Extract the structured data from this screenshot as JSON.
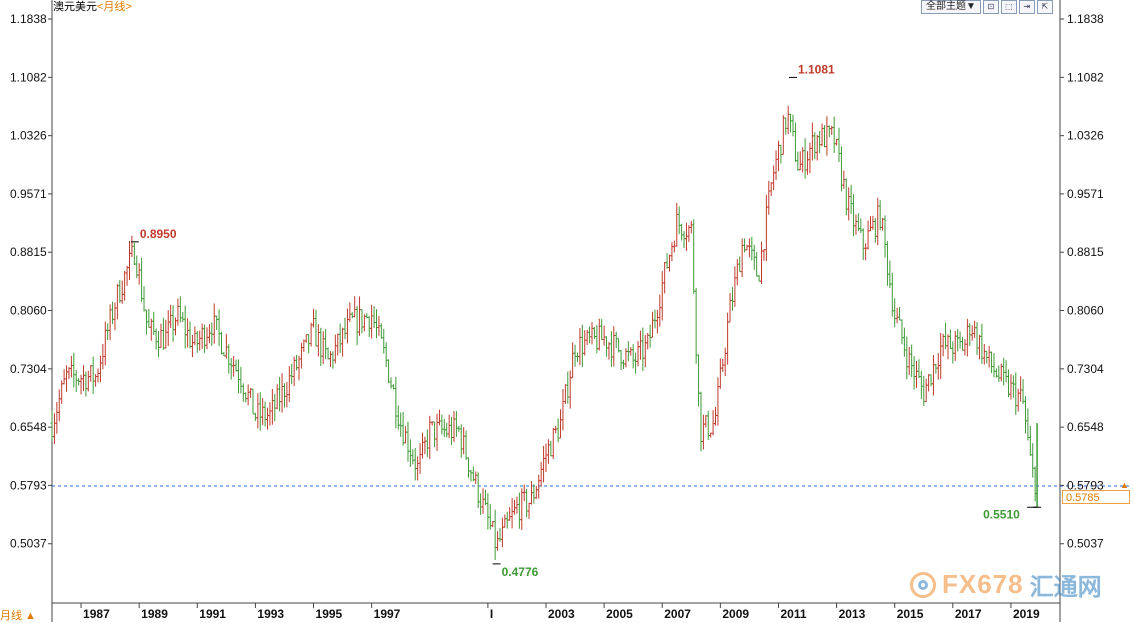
{
  "header": {
    "symbol": "澳元美元",
    "period": "<月线>"
  },
  "toolbar": {
    "theme_label": "全部主题▼",
    "buttons": [
      "⊡",
      "⬚",
      "⇥",
      "⇱"
    ]
  },
  "period_toggle": "月线 ▲",
  "watermark": {
    "text_a": "FX678",
    "text_b": "汇通网"
  },
  "colors": {
    "up": "#c0392b",
    "down": "#3e9a36",
    "current_line": "#2a6fdb",
    "axis": "#000000",
    "current_price": "#e07a00"
  },
  "current_price": {
    "label": "0.5785",
    "axis_mark": "0.5793",
    "value": 0.5785
  },
  "chart_data": {
    "type": "ohlc",
    "title": "澳元美元 <月线>",
    "ylim": [
      0.4282,
      1.1838
    ],
    "y_ticks": [
      "1.1838",
      "1.1082",
      "1.0326",
      "0.9571",
      "0.8815",
      "0.8060",
      "0.7304",
      "0.6548",
      "0.5793",
      "0.5037"
    ],
    "y_tick_values": [
      1.1838,
      1.1082,
      1.0326,
      0.9571,
      0.8815,
      0.806,
      0.7304,
      0.6548,
      0.5793,
      0.5037
    ],
    "x_ticks": [
      "1987",
      "1989",
      "1991",
      "1993",
      "1995",
      "1997",
      "I",
      "2003",
      "2005",
      "2007",
      "2009",
      "2011",
      "2013",
      "2015",
      "2017",
      "2019"
    ],
    "x_tick_years": [
      1987,
      1989,
      1991,
      1993,
      1995,
      1997,
      2001,
      2003,
      2005,
      2007,
      2009,
      2011,
      2013,
      2015,
      2017,
      2019
    ],
    "x_range": [
      1986.0,
      2020.0
    ],
    "annotations": [
      {
        "label": "0.8950",
        "year": 1988.85,
        "value": 0.895,
        "kind": "high"
      },
      {
        "label": "0.4776",
        "year": 2001.3,
        "value": 0.4776,
        "kind": "low"
      },
      {
        "label": "1.1081",
        "year": 2011.5,
        "value": 1.1081,
        "kind": "high"
      },
      {
        "label": "0.5510",
        "year": 2019.9,
        "value": 0.551,
        "kind": "low"
      }
    ],
    "path": [
      [
        1986.0,
        0.66
      ],
      [
        1986.5,
        0.72
      ],
      [
        1987.5,
        0.72
      ],
      [
        1988.2,
        0.82
      ],
      [
        1988.85,
        0.885
      ],
      [
        1989.3,
        0.78
      ],
      [
        1989.9,
        0.77
      ],
      [
        1990.3,
        0.8
      ],
      [
        1990.9,
        0.76
      ],
      [
        1991.5,
        0.79
      ],
      [
        1992.5,
        0.72
      ],
      [
        1993.0,
        0.67
      ],
      [
        1993.5,
        0.67
      ],
      [
        1994.5,
        0.74
      ],
      [
        1995.0,
        0.78
      ],
      [
        1995.5,
        0.74
      ],
      [
        1996.3,
        0.79
      ],
      [
        1997.0,
        0.8
      ],
      [
        1997.5,
        0.74
      ],
      [
        1998.0,
        0.66
      ],
      [
        1998.6,
        0.6
      ],
      [
        1999.0,
        0.65
      ],
      [
        2000.0,
        0.65
      ],
      [
        2000.5,
        0.59
      ],
      [
        2001.3,
        0.5
      ],
      [
        2002.0,
        0.55
      ],
      [
        2002.5,
        0.56
      ],
      [
        2003.0,
        0.62
      ],
      [
        2003.5,
        0.66
      ],
      [
        2004.0,
        0.76
      ],
      [
        2005.0,
        0.77
      ],
      [
        2006.0,
        0.74
      ],
      [
        2006.5,
        0.76
      ],
      [
        2007.0,
        0.84
      ],
      [
        2007.5,
        0.92
      ],
      [
        2008.0,
        0.91
      ],
      [
        2008.3,
        0.65
      ],
      [
        2008.8,
        0.66
      ],
      [
        2009.3,
        0.8
      ],
      [
        2009.8,
        0.9
      ],
      [
        2010.3,
        0.85
      ],
      [
        2010.8,
        0.98
      ],
      [
        2011.3,
        1.06
      ],
      [
        2011.7,
        0.99
      ],
      [
        2012.3,
        1.03
      ],
      [
        2012.9,
        1.03
      ],
      [
        2013.4,
        0.94
      ],
      [
        2013.9,
        0.89
      ],
      [
        2014.5,
        0.93
      ],
      [
        2015.0,
        0.8
      ],
      [
        2015.5,
        0.74
      ],
      [
        2016.0,
        0.7
      ],
      [
        2016.6,
        0.76
      ],
      [
        2017.4,
        0.76
      ],
      [
        2017.6,
        0.79
      ],
      [
        2018.2,
        0.74
      ],
      [
        2018.8,
        0.71
      ],
      [
        2019.4,
        0.69
      ],
      [
        2019.7,
        0.6
      ],
      [
        2019.9,
        0.5785
      ]
    ]
  }
}
